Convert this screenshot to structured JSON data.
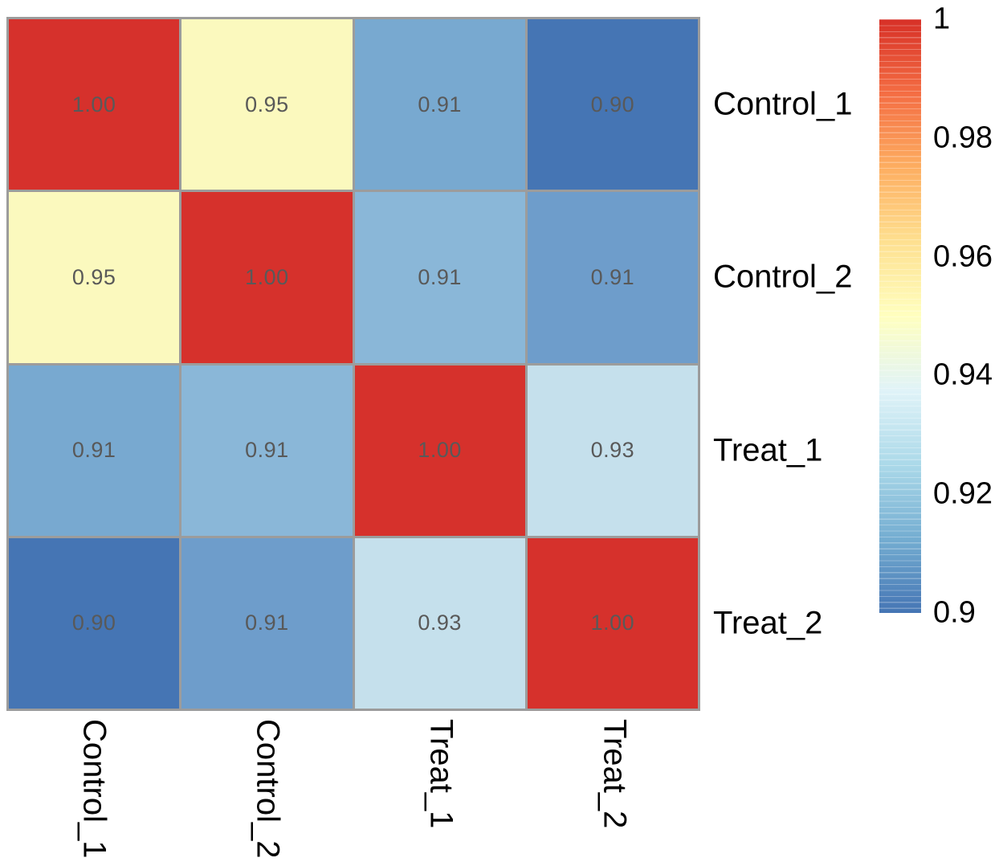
{
  "chart_data": {
    "type": "heatmap",
    "title": "",
    "description": "Sample correlation heatmap, RdYlBu-reversed palette",
    "rows": [
      "Control_1",
      "Control_2",
      "Treat_1",
      "Treat_2"
    ],
    "columns": [
      "Control_1",
      "Control_2",
      "Treat_1",
      "Treat_2"
    ],
    "values": [
      [
        1.0,
        0.95,
        0.91,
        0.9
      ],
      [
        0.95,
        1.0,
        0.91,
        0.91
      ],
      [
        0.91,
        0.91,
        1.0,
        0.93
      ],
      [
        0.9,
        0.91,
        0.93,
        1.0
      ]
    ],
    "cell_labels": [
      [
        "1.00",
        "0.95",
        "0.91",
        "0.90"
      ],
      [
        "0.95",
        "1.00",
        "0.91",
        "0.91"
      ],
      [
        "0.91",
        "0.91",
        "1.00",
        "0.93"
      ],
      [
        "0.90",
        "0.91",
        "0.93",
        "1.00"
      ]
    ],
    "cell_colors": [
      [
        "#D6312C",
        "#FBF9BE",
        "#78A9D0",
        "#4575B4"
      ],
      [
        "#FBF9BE",
        "#D6312C",
        "#8AB7D8",
        "#6E9DCB"
      ],
      [
        "#78A9D0",
        "#8AB7D8",
        "#D6312C",
        "#C5E0EC"
      ],
      [
        "#4575B4",
        "#6E9DCB",
        "#C5E0EC",
        "#D6312C"
      ]
    ],
    "grid_lines": true,
    "legend_position": "right",
    "colorbar": {
      "min": 0.9,
      "max": 1.0,
      "tick_labels": [
        "1",
        "0.98",
        "0.96",
        "0.94",
        "0.92",
        "0.9"
      ],
      "tick_values": [
        1.0,
        0.98,
        0.96,
        0.94,
        0.92,
        0.9
      ],
      "gradient_top_to_bottom": [
        "#D73027",
        "#F46D43",
        "#FDAE61",
        "#FEE090",
        "#FFFFBF",
        "#E0F3F8",
        "#ABD9E9",
        "#74ADD1",
        "#4575B4"
      ]
    }
  },
  "colors": {
    "background": "#FFFFFF",
    "grid_border": "#9C9C9C",
    "cell_value_text": "#595959",
    "label_text": "#000000"
  }
}
